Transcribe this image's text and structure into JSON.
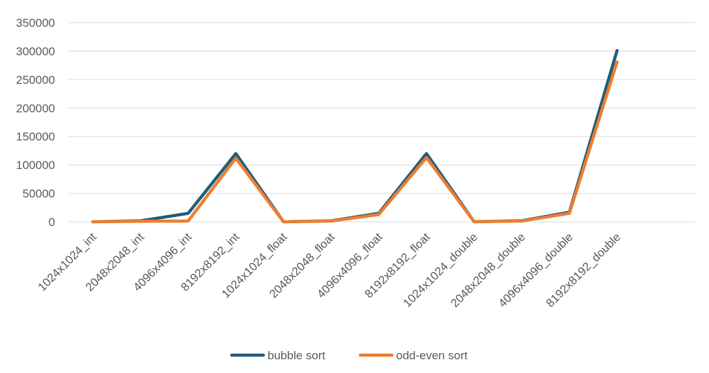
{
  "chart_data": {
    "type": "line",
    "title": "",
    "xlabel": "",
    "ylabel": "",
    "categories": [
      "1024x1024_int",
      "2048x2048_int",
      "4096x4096_int",
      "8192x8192_int",
      "1024x1024_float",
      "2048x2048_float",
      "4096x4096_float",
      "8192x8192_float",
      "1024x1024_double",
      "2048x2048_double",
      "4096x4096_double",
      "8192x8192_double"
    ],
    "yticks": [
      "0",
      "50000",
      "100000",
      "150000",
      "200000",
      "250000",
      "300000",
      "350000"
    ],
    "ylim": [
      0,
      350000
    ],
    "grid": true,
    "legend": "bottom",
    "series": [
      {
        "name": "bubble sort",
        "color": "#1f5c7a",
        "values": [
          200,
          1800,
          15000,
          120000,
          200,
          1800,
          15000,
          120000,
          300,
          2000,
          17000,
          301000
        ]
      },
      {
        "name": "odd-even sort",
        "color": "#ed7d31",
        "values": [
          200,
          1000,
          1500,
          112000,
          200,
          1500,
          13000,
          113000,
          200,
          1500,
          15000,
          281000
        ]
      }
    ]
  }
}
